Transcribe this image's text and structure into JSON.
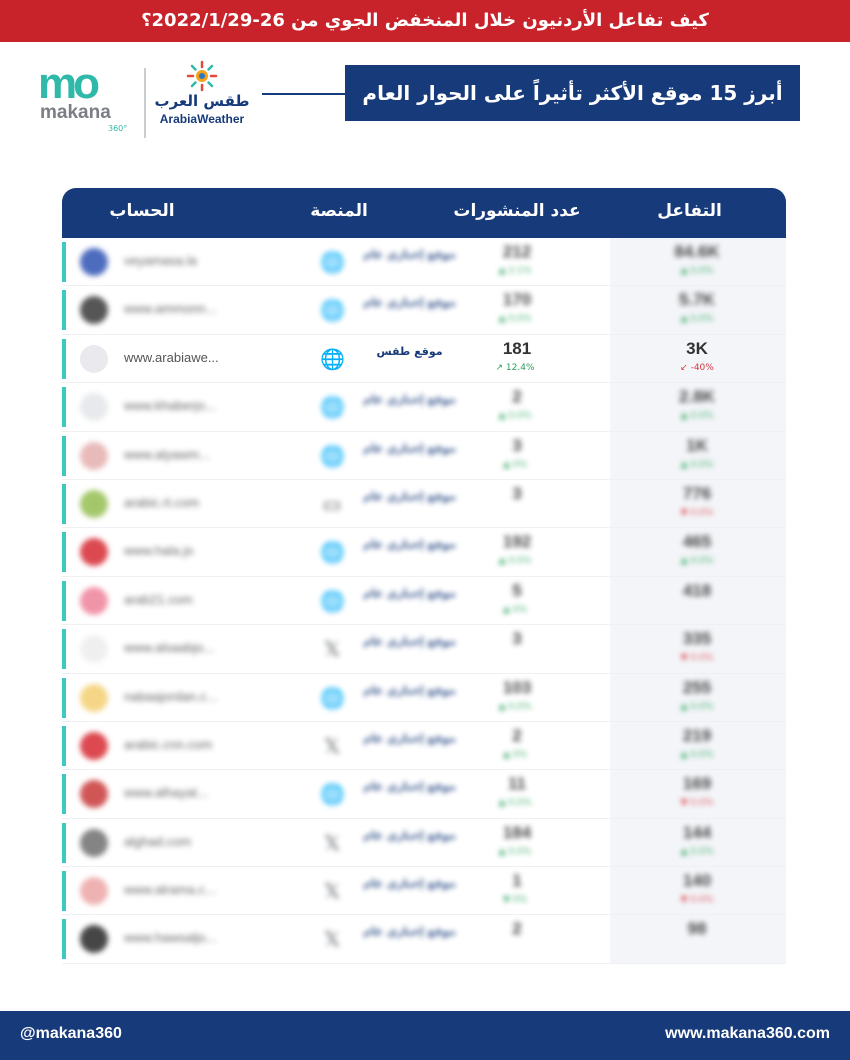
{
  "header": {
    "title": "كيف تفاعل الأردنيون خلال المنخفض الجوي من 26-2022/1/29؟"
  },
  "logos": {
    "makana_mark": "mo",
    "makana_word": "makana",
    "makana_360": "360°",
    "arabia_ar": "طقس العرب",
    "arabia_en": "ArabiaWeather"
  },
  "section_title": "أبرز 15 موقع الأكثر تأثيراً على الحوار العام",
  "table": {
    "headers": {
      "account": "الحساب",
      "platform": "المنصة",
      "posts": "عدد المنشورات",
      "engagement": "التفاعل"
    },
    "rows": [
      {
        "account": "veyamasa.la",
        "platform_icon": "globe-icon",
        "platform": "موقع إخباري عام",
        "posts": "212",
        "posts_change": "▲ 2.1%",
        "engagement": "84.6K",
        "engagement_change": "▲ 0.0%",
        "eng_dir": "up",
        "blurred": true
      },
      {
        "account": "www.ammonn...",
        "platform_icon": "globe-icon",
        "platform": "موقع إخباري عام",
        "posts": "170",
        "posts_change": "▲ 0.0%",
        "engagement": "5.7K",
        "engagement_change": "▲ 0.0%",
        "eng_dir": "up",
        "blurred": true
      },
      {
        "account": "www.arabiawe...",
        "platform_icon": "globe-icon",
        "platform": "موقع طقس",
        "posts": "181",
        "posts_change": "↗ 12.4%",
        "engagement": "3K",
        "engagement_change": "↙ -40%",
        "eng_dir": "down",
        "blurred": false
      },
      {
        "account": "www.khaberjo...",
        "platform_icon": "globe-icon",
        "platform": "موقع إخباري عام",
        "posts": "2",
        "posts_change": "▲ 0.0%",
        "engagement": "2.8K",
        "engagement_change": "▲ 0.0%",
        "eng_dir": "up",
        "blurred": true
      },
      {
        "account": "www.alyawm...",
        "platform_icon": "globe-icon",
        "platform": "موقع إخباري عام",
        "posts": "3",
        "posts_change": "▲ 0%",
        "engagement": "1K",
        "engagement_change": "▲ 0.0%",
        "eng_dir": "up",
        "blurred": true
      },
      {
        "account": "arabic.rt.com",
        "platform_icon": "tv-icon",
        "platform": "موقع إخباري عام",
        "posts": "3",
        "posts_change": "",
        "engagement": "776",
        "engagement_change": "▼ 0.0%",
        "eng_dir": "down",
        "blurred": true
      },
      {
        "account": "www.hala.jo",
        "platform_icon": "globe-icon",
        "platform": "موقع إخباري عام",
        "posts": "192",
        "posts_change": "▲ 0.0%",
        "engagement": "465",
        "engagement_change": "▲ 0.0%",
        "eng_dir": "up",
        "blurred": true
      },
      {
        "account": "arab21.com",
        "platform_icon": "globe-icon",
        "platform": "موقع إخباري عام",
        "posts": "5",
        "posts_change": "▲ 0%",
        "engagement": "418",
        "engagement_change": "",
        "eng_dir": "up",
        "blurred": true
      },
      {
        "account": "www.alsaabjo...",
        "platform_icon": "x-icon",
        "platform": "موقع إخباري عام",
        "posts": "3",
        "posts_change": "",
        "engagement": "335",
        "engagement_change": "▼ 0.0%",
        "eng_dir": "down",
        "blurred": true
      },
      {
        "account": "nabaajordan.c...",
        "platform_icon": "globe-icon",
        "platform": "موقع إخباري عام",
        "posts": "103",
        "posts_change": "▲ 0.0%",
        "engagement": "255",
        "engagement_change": "▲ 0.0%",
        "eng_dir": "up",
        "blurred": true
      },
      {
        "account": "arabic.cnn.com",
        "platform_icon": "x-icon",
        "platform": "موقع إخباري عام",
        "posts": "2",
        "posts_change": "▲ 0%",
        "engagement": "219",
        "engagement_change": "▲ 0.0%",
        "eng_dir": "up",
        "blurred": true
      },
      {
        "account": "www.alhayat...",
        "platform_icon": "globe-icon",
        "platform": "موقع إخباري عام",
        "posts": "11",
        "posts_change": "▲ 0.0%",
        "engagement": "169",
        "engagement_change": "▼ 0.0%",
        "eng_dir": "down",
        "blurred": true
      },
      {
        "account": "alghad.com",
        "platform_icon": "x-icon",
        "platform": "موقع إخباري عام",
        "posts": "184",
        "posts_change": "▲ 0.0%",
        "engagement": "144",
        "engagement_change": "▲ 0.0%",
        "eng_dir": "up",
        "blurred": true
      },
      {
        "account": "www.alrama.c...",
        "platform_icon": "x-icon",
        "platform": "موقع إخباري عام",
        "posts": "1",
        "posts_change": "▼ 0%",
        "engagement": "140",
        "engagement_change": "▼ 0.0%",
        "eng_dir": "down",
        "blurred": true
      },
      {
        "account": "www.hawsaljo...",
        "platform_icon": "x-icon",
        "platform": "موقع إخباري عام",
        "posts": "2",
        "posts_change": "",
        "engagement": "98",
        "engagement_change": "",
        "eng_dir": "up",
        "blurred": true
      }
    ]
  },
  "footer": {
    "handle": "@makana360",
    "site": "www.makana360.com"
  },
  "colors": {
    "red": "#c8232b",
    "navy": "#173a7a",
    "teal": "#3ec9c0"
  }
}
